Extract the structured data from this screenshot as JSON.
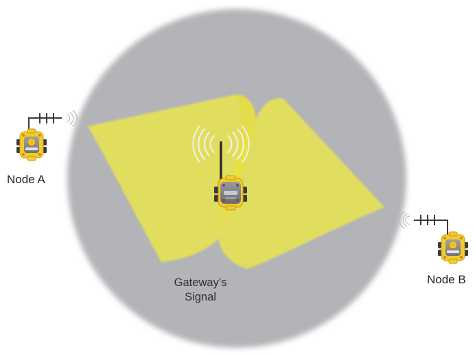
{
  "labels": {
    "node_a": "Node A",
    "node_b": "Node B",
    "gateway_line1": "Gateway’s",
    "gateway_line2": "Signal"
  },
  "icons": {
    "gateway": "gateway-radio-icon",
    "node": "node-radio-icon",
    "antenna": "antenna-icon",
    "signal_waves": "signal-waves-icon"
  },
  "colors": {
    "coverage_circle": "#b3b4b7",
    "signal_plane": "#ece74d",
    "device_body_yellow": "#f4cb2c",
    "device_face_gray": "#7f7f81",
    "device_connector": "#3a3a3a",
    "antenna": "#2b2b2b",
    "text": "#231f20"
  }
}
